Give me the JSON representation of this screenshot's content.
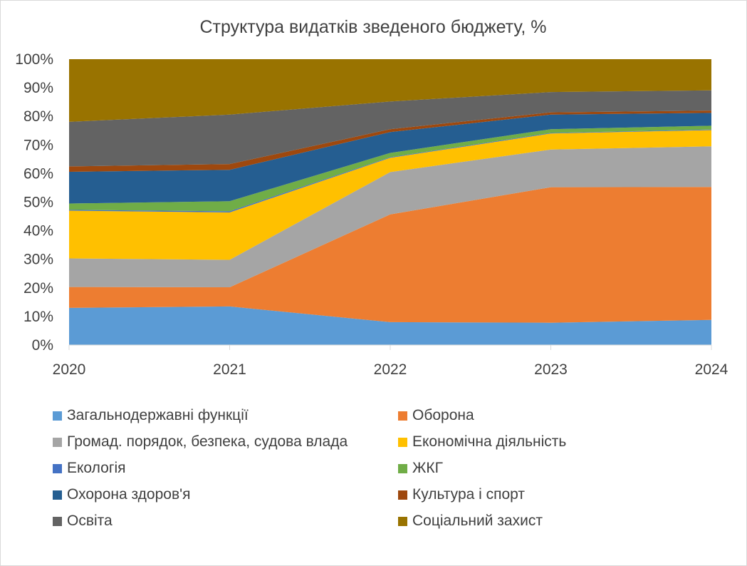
{
  "chart_data": {
    "type": "area",
    "stacked": true,
    "percent": true,
    "title": "Структура видатків зведеного бюджету, %",
    "x": [
      "2020",
      "2021",
      "2022",
      "2023",
      "2024"
    ],
    "ylim": [
      0,
      100
    ],
    "y_ticks": [
      "0%",
      "10%",
      "20%",
      "30%",
      "40%",
      "50%",
      "60%",
      "70%",
      "80%",
      "90%",
      "100%"
    ],
    "grid": false,
    "legend_position": "bottom",
    "series": [
      {
        "name": "Загальнодержавні функції",
        "color": "#5B9BD5",
        "values": [
          13.0,
          13.5,
          8.0,
          7.8,
          8.8
        ]
      },
      {
        "name": "Оборона",
        "color": "#ED7D31",
        "values": [
          7.3,
          6.7,
          37.7,
          47.4,
          46.5
        ]
      },
      {
        "name": "Громад. порядок, безпека, судова влада",
        "color": "#A5A5A5",
        "values": [
          10.0,
          9.6,
          14.8,
          13.2,
          14.2
        ]
      },
      {
        "name": "Економічна діяльність",
        "color": "#FFC000",
        "values": [
          16.7,
          16.6,
          5.0,
          5.6,
          5.7
        ]
      },
      {
        "name": "Екологія",
        "color": "#4472C4",
        "values": [
          0.3,
          0.4,
          0.2,
          0.2,
          0.2
        ]
      },
      {
        "name": "ЖКГ",
        "color": "#70AD47",
        "values": [
          2.2,
          3.5,
          1.5,
          1.3,
          1.3
        ]
      },
      {
        "name": "Охорона здоров'я",
        "color": "#255E91",
        "values": [
          11.1,
          11.0,
          7.3,
          5.1,
          4.5
        ]
      },
      {
        "name": "Культура і спорт",
        "color": "#9E480E",
        "values": [
          1.9,
          2.0,
          1.0,
          0.8,
          0.8
        ]
      },
      {
        "name": "Освіта",
        "color": "#636363",
        "values": [
          15.6,
          17.3,
          9.7,
          7.1,
          7.1
        ]
      },
      {
        "name": "Соціальний захист",
        "color": "#997300",
        "values": [
          21.9,
          19.4,
          14.8,
          11.5,
          10.9
        ]
      }
    ]
  }
}
